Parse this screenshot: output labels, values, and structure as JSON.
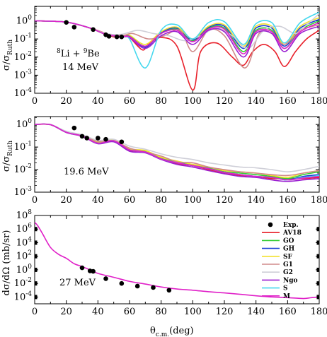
{
  "figure": {
    "xlabel_main": "θ",
    "xlabel_sub": "c.m.",
    "xlabel_unit": "(deg)"
  },
  "colors": {
    "Exp.": "#000000",
    "AV18": "#e8202a",
    "GO": "#33cc33",
    "GH": "#1a3fd6",
    "SF": "#f2e02a",
    "G1": "#d08a8a",
    "G2": "#cfcfd8",
    "Ngo": "#9b1fd1",
    "S": "#44d8ee",
    "M": "#e020c8"
  },
  "legend": {
    "entries": [
      "Exp.",
      "AV18",
      "GO",
      "GH",
      "SF",
      "G1",
      "G2",
      "Ngo",
      "S",
      "M"
    ]
  },
  "chart_data": [
    {
      "type": "line",
      "panel": "top",
      "ylabel_main": "σ/σ",
      "ylabel_sub": "Ruth",
      "annotation_line1": "8Li + 9Be",
      "annotation_line1_parts": [
        "8",
        "Li + ",
        "9",
        "Be"
      ],
      "annotation_line2": "14 MeV",
      "x_ticks": [
        "0",
        "20",
        "40",
        "60",
        "80",
        "100",
        "120",
        "140",
        "160",
        "180"
      ],
      "y_ticks": [
        "10-4",
        "10-3",
        "10-2",
        "10-1",
        "100"
      ],
      "y_tick_parts": [
        [
          "10",
          "-4"
        ],
        [
          "10",
          "-3"
        ],
        [
          "10",
          "-2"
        ],
        [
          "10",
          "-1"
        ],
        [
          "10",
          "0"
        ]
      ],
      "xlim": [
        0,
        180
      ],
      "ylim_log10": [
        -4,
        0.8
      ],
      "yscale": "log",
      "experimental": {
        "x": [
          20,
          25,
          37,
          45,
          47,
          52,
          55
        ],
        "y": [
          0.82,
          0.45,
          0.33,
          0.17,
          0.14,
          0.13,
          0.13
        ]
      },
      "series": [
        {
          "name": "AV18",
          "x": [
            0,
            20,
            35,
            45,
            50,
            55,
            60,
            68,
            72,
            80,
            90,
            100,
            105,
            115,
            125,
            132,
            138,
            145,
            152,
            158,
            165,
            172,
            180
          ],
          "y": [
            1,
            0.85,
            0.4,
            0.2,
            0.13,
            0.15,
            0.12,
            0.025,
            0.05,
            0.12,
            0.04,
            0.00015,
            0.02,
            0.06,
            0.01,
            0.0035,
            0.02,
            0.05,
            0.02,
            0.003,
            0.02,
            0.1,
            0.3
          ]
        },
        {
          "name": "GO",
          "x": [
            0,
            20,
            35,
            45,
            55,
            60,
            70,
            80,
            90,
            100,
            110,
            120,
            132,
            140,
            150,
            158,
            168,
            180
          ],
          "y": [
            1,
            0.85,
            0.4,
            0.18,
            0.15,
            0.15,
            0.04,
            0.2,
            0.35,
            0.08,
            0.4,
            0.4,
            0.02,
            0.3,
            0.3,
            0.03,
            0.3,
            1.0
          ]
        },
        {
          "name": "GH",
          "x": [
            0,
            20,
            35,
            45,
            55,
            60,
            70,
            80,
            90,
            100,
            110,
            120,
            132,
            140,
            150,
            158,
            168,
            180
          ],
          "y": [
            1,
            0.85,
            0.4,
            0.18,
            0.14,
            0.15,
            0.035,
            0.22,
            0.4,
            0.09,
            0.45,
            0.5,
            0.03,
            0.4,
            0.4,
            0.04,
            0.4,
            1.2
          ]
        },
        {
          "name": "SF",
          "x": [
            0,
            20,
            35,
            45,
            55,
            60,
            70,
            80,
            90,
            100,
            110,
            120,
            132,
            140,
            150,
            158,
            168,
            180
          ],
          "y": [
            1,
            0.85,
            0.4,
            0.18,
            0.15,
            0.16,
            0.05,
            0.25,
            0.45,
            0.1,
            0.5,
            0.6,
            0.04,
            0.5,
            0.5,
            0.05,
            0.5,
            1.5
          ]
        },
        {
          "name": "G1",
          "x": [
            0,
            20,
            35,
            45,
            55,
            62,
            72,
            82,
            92,
            100,
            110,
            120,
            133,
            142,
            150,
            158,
            168,
            180
          ],
          "y": [
            1,
            0.85,
            0.4,
            0.2,
            0.15,
            0.2,
            0.1,
            0.15,
            0.3,
            0.02,
            0.3,
            0.15,
            0.0025,
            0.2,
            0.2,
            0.05,
            0.3,
            0.6
          ]
        },
        {
          "name": "G2",
          "x": [
            0,
            20,
            35,
            45,
            55,
            65,
            75,
            85,
            95,
            105,
            115,
            125,
            135,
            145,
            155,
            165,
            172,
            180
          ],
          "y": [
            1,
            0.85,
            0.4,
            0.2,
            0.18,
            0.3,
            0.2,
            0.15,
            0.08,
            0.15,
            0.4,
            0.15,
            0.03,
            0.3,
            0.5,
            0.2,
            0.6,
            2.5
          ]
        },
        {
          "name": "Ngo",
          "x": [
            0,
            20,
            35,
            45,
            55,
            60,
            70,
            80,
            90,
            100,
            110,
            120,
            132,
            140,
            150,
            158,
            168,
            180
          ],
          "y": [
            1,
            0.85,
            0.4,
            0.18,
            0.13,
            0.12,
            0.03,
            0.15,
            0.25,
            0.05,
            0.3,
            0.25,
            0.01,
            0.2,
            0.2,
            0.02,
            0.2,
            0.5
          ]
        },
        {
          "name": "S",
          "x": [
            0,
            20,
            35,
            45,
            55,
            60,
            70,
            80,
            90,
            100,
            110,
            120,
            132,
            140,
            150,
            158,
            168,
            180
          ],
          "y": [
            1,
            0.85,
            0.4,
            0.18,
            0.13,
            0.1,
            0.0025,
            0.3,
            0.6,
            0.1,
            0.8,
            0.9,
            0.05,
            0.7,
            0.8,
            0.06,
            0.8,
            3.0
          ]
        },
        {
          "name": "M",
          "x": [
            0,
            20,
            35,
            45,
            55,
            60,
            70,
            80,
            90,
            100,
            110,
            120,
            132,
            140,
            150,
            158,
            168,
            180
          ],
          "y": [
            1,
            0.85,
            0.4,
            0.18,
            0.14,
            0.13,
            0.04,
            0.2,
            0.3,
            0.07,
            0.35,
            0.35,
            0.015,
            0.25,
            0.25,
            0.03,
            0.25,
            0.8
          ]
        }
      ]
    },
    {
      "type": "line",
      "panel": "middle",
      "ylabel_main": "σ/σ",
      "ylabel_sub": "Ruth",
      "annotation_line1": "19.6 MeV",
      "x_ticks": [
        "0",
        "20",
        "40",
        "60",
        "80",
        "100",
        "120",
        "140",
        "160",
        "180"
      ],
      "y_ticks": [
        "10-3",
        "10-2",
        "10-1",
        "100"
      ],
      "y_tick_parts": [
        [
          "10",
          "-3"
        ],
        [
          "10",
          "-2"
        ],
        [
          "10",
          "-1"
        ],
        [
          "10",
          "0"
        ]
      ],
      "xlim": [
        0,
        180
      ],
      "ylim_log10": [
        -3,
        0.35
      ],
      "yscale": "log",
      "experimental": {
        "x": [
          25,
          30,
          33,
          40,
          45,
          55
        ],
        "y": [
          0.7,
          0.3,
          0.25,
          0.25,
          0.22,
          0.17
        ]
      },
      "series": [
        {
          "name": "AV18",
          "x": [
            0,
            10,
            20,
            30,
            40,
            50,
            60,
            70,
            80,
            90,
            100,
            110,
            120,
            130,
            140,
            150,
            160,
            170,
            180
          ],
          "y": [
            1,
            0.98,
            0.45,
            0.3,
            0.15,
            0.18,
            0.07,
            0.06,
            0.03,
            0.018,
            0.015,
            0.01,
            0.007,
            0.0055,
            0.005,
            0.004,
            0.004,
            0.004,
            0.0045
          ]
        },
        {
          "name": "GO",
          "x": [
            0,
            10,
            20,
            30,
            40,
            50,
            60,
            70,
            80,
            90,
            100,
            110,
            120,
            130,
            140,
            150,
            160,
            170,
            180
          ],
          "y": [
            1,
            0.98,
            0.45,
            0.32,
            0.16,
            0.2,
            0.08,
            0.065,
            0.032,
            0.022,
            0.016,
            0.012,
            0.008,
            0.007,
            0.006,
            0.005,
            0.004,
            0.006,
            0.008
          ]
        },
        {
          "name": "GH",
          "x": [
            0,
            10,
            20,
            30,
            40,
            50,
            60,
            70,
            80,
            90,
            100,
            110,
            120,
            130,
            140,
            150,
            160,
            170,
            180
          ],
          "y": [
            1,
            0.98,
            0.45,
            0.31,
            0.15,
            0.19,
            0.075,
            0.06,
            0.03,
            0.02,
            0.015,
            0.011,
            0.0075,
            0.006,
            0.005,
            0.0045,
            0.0035,
            0.005,
            0.006
          ]
        },
        {
          "name": "SF",
          "x": [
            0,
            10,
            20,
            30,
            40,
            50,
            60,
            70,
            80,
            90,
            100,
            110,
            120,
            130,
            140,
            150,
            160,
            170,
            180
          ],
          "y": [
            1,
            0.98,
            0.46,
            0.33,
            0.17,
            0.21,
            0.085,
            0.07,
            0.035,
            0.024,
            0.017,
            0.013,
            0.009,
            0.008,
            0.007,
            0.0055,
            0.0045,
            0.007,
            0.009
          ]
        },
        {
          "name": "G1",
          "x": [
            0,
            10,
            20,
            30,
            40,
            50,
            60,
            70,
            80,
            90,
            100,
            110,
            120,
            130,
            140,
            150,
            160,
            170,
            180
          ],
          "y": [
            1,
            0.98,
            0.47,
            0.32,
            0.18,
            0.19,
            0.09,
            0.06,
            0.04,
            0.022,
            0.02,
            0.013,
            0.01,
            0.008,
            0.007,
            0.006,
            0.0055,
            0.007,
            0.009
          ]
        },
        {
          "name": "G2",
          "x": [
            0,
            10,
            20,
            30,
            40,
            50,
            60,
            70,
            80,
            90,
            100,
            110,
            120,
            130,
            140,
            150,
            160,
            170,
            180
          ],
          "y": [
            1,
            0.99,
            0.5,
            0.35,
            0.2,
            0.22,
            0.11,
            0.08,
            0.05,
            0.035,
            0.028,
            0.02,
            0.016,
            0.013,
            0.012,
            0.01,
            0.008,
            0.01,
            0.014
          ]
        },
        {
          "name": "Ngo",
          "x": [
            0,
            10,
            20,
            30,
            40,
            50,
            60,
            70,
            80,
            90,
            100,
            110,
            120,
            130,
            140,
            150,
            160,
            170,
            180
          ],
          "y": [
            1,
            0.98,
            0.44,
            0.3,
            0.14,
            0.17,
            0.065,
            0.055,
            0.028,
            0.017,
            0.013,
            0.009,
            0.0065,
            0.005,
            0.0045,
            0.0035,
            0.003,
            0.0035,
            0.004
          ]
        },
        {
          "name": "S",
          "x": [
            0,
            10,
            20,
            30,
            40,
            50,
            60,
            70,
            80,
            90,
            100,
            110,
            120,
            130,
            140,
            150,
            160,
            170,
            180
          ],
          "y": [
            1,
            0.98,
            0.45,
            0.31,
            0.15,
            0.19,
            0.075,
            0.06,
            0.03,
            0.02,
            0.015,
            0.011,
            0.0075,
            0.006,
            0.005,
            0.0045,
            0.0035,
            0.0045,
            0.0055
          ]
        },
        {
          "name": "M",
          "x": [
            0,
            10,
            20,
            30,
            40,
            50,
            60,
            70,
            80,
            90,
            100,
            110,
            120,
            130,
            140,
            150,
            160,
            170,
            180
          ],
          "y": [
            1,
            0.98,
            0.45,
            0.31,
            0.15,
            0.19,
            0.075,
            0.06,
            0.03,
            0.02,
            0.015,
            0.011,
            0.0075,
            0.006,
            0.005,
            0.0045,
            0.0035,
            0.0042,
            0.005
          ]
        }
      ]
    },
    {
      "type": "line",
      "panel": "bottom",
      "ylabel": "dσ/dΩ  (mb/sr)",
      "annotation_line1": "27 MeV",
      "x_ticks": [
        "0",
        "20",
        "40",
        "60",
        "80",
        "100",
        "120",
        "140",
        "160",
        "180"
      ],
      "y_ticks": [
        "10-4",
        "10-2",
        "100",
        "102",
        "104",
        "106",
        "108"
      ],
      "y_tick_parts": [
        [
          "10",
          "-4"
        ],
        [
          "10",
          "-2"
        ],
        [
          "10",
          "0"
        ],
        [
          "10",
          "2"
        ],
        [
          "10",
          "4"
        ],
        [
          "10",
          "6"
        ],
        [
          "10",
          "8"
        ]
      ],
      "xlim": [
        0,
        180
      ],
      "ylim_log10": [
        -5,
        8
      ],
      "yscale": "log",
      "experimental": {
        "x": [
          30,
          35,
          37,
          45,
          55,
          65,
          75,
          85
        ],
        "y": [
          2,
          0.7,
          0.6,
          0.05,
          0.01,
          0.004,
          0.0025,
          0.001
        ]
      },
      "series": [
        {
          "name": "M",
          "x": [
            0,
            2,
            5,
            10,
            15,
            20,
            25,
            30,
            35,
            40,
            50,
            60,
            70,
            80,
            90,
            100,
            110,
            120,
            130,
            140,
            150,
            160,
            170,
            175,
            180
          ],
          "y": [
            10000000,
            3000000,
            200000,
            2000,
            200,
            50,
            8,
            3,
            1,
            0.3,
            0.08,
            0.02,
            0.008,
            0.003,
            0.0015,
            0.001,
            0.0006,
            0.0004,
            0.00025,
            0.00015,
            0.0001,
            8e-05,
            6e-05,
            8e-05,
            0.0001
          ]
        }
      ]
    }
  ]
}
